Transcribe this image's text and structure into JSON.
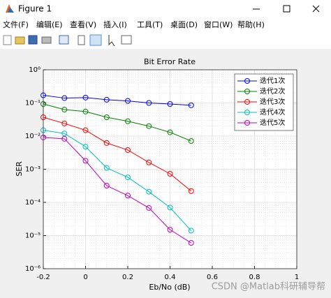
{
  "window": {
    "title": "Figure 1"
  },
  "menu": [
    "文件(F)",
    "编辑(E)",
    "查看(V)",
    "插入(I)",
    "工具(T)",
    "桌面(D)",
    "窗口(W)",
    "帮助(H)"
  ],
  "watermark": "CSDN @Matlab科研辅导帮",
  "chart_data": {
    "type": "line",
    "title": "Bit Error Rate",
    "x_label": "Eb/No (dB)",
    "y_label": "SER",
    "x": [
      -0.2,
      -0.1,
      0,
      0.1,
      0.2,
      0.3,
      0.4,
      0.5
    ],
    "series": [
      {
        "name": "迭代1次",
        "color": "#0000ff",
        "values": [
          0.17,
          0.14,
          0.145,
          0.125,
          0.115,
          0.1,
          0.093,
          0.085
        ]
      },
      {
        "name": "迭代2次",
        "color": "#008000",
        "values": [
          0.093,
          0.063,
          0.055,
          0.037,
          0.028,
          0.02,
          0.013,
          0.0071
        ]
      },
      {
        "name": "迭代3次",
        "color": "#ff0000",
        "values": [
          0.037,
          0.024,
          0.015,
          0.0062,
          0.0038,
          0.0016,
          0.00073,
          0.00022
        ]
      },
      {
        "name": "迭代4次",
        "color": "#00bfbf",
        "values": [
          0.015,
          0.012,
          0.0048,
          0.0011,
          0.00057,
          0.00021,
          7e-05,
          1.4e-05
        ]
      },
      {
        "name": "迭代5次",
        "color": "#bf00bf",
        "values": [
          0.0091,
          0.0083,
          0.0018,
          0.00032,
          0.00016,
          6.8e-05,
          1.5e-05,
          6e-06
        ]
      }
    ],
    "xlim": [
      -0.2,
      1
    ],
    "xticks": [
      -0.2,
      0,
      0.2,
      0.4,
      0.6,
      0.8,
      1
    ],
    "ylim": [
      1e-06,
      1
    ],
    "log_y": true,
    "yticks": [
      {
        "value": 1e-06,
        "label": "10⁻⁶"
      },
      {
        "value": 1e-05,
        "label": "10⁻⁵"
      },
      {
        "value": 0.0001,
        "label": "10⁻⁴"
      },
      {
        "value": 0.001,
        "label": "10⁻³"
      },
      {
        "value": 0.01,
        "label": "10⁻²"
      },
      {
        "value": 0.1,
        "label": "10⁻¹"
      },
      {
        "value": 1,
        "label": "10⁰"
      }
    ],
    "grid": true,
    "minor_grid": true,
    "legend": "northeast",
    "marker": "circle"
  }
}
